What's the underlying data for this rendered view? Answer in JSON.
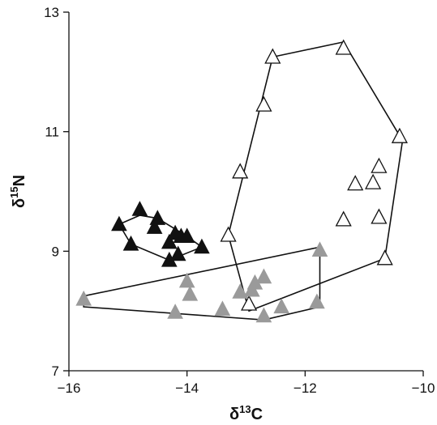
{
  "chart_data": {
    "type": "scatter",
    "title": "",
    "xlabel": "δ13C",
    "xlabel_parts": {
      "symbol": "δ",
      "superscript": "13",
      "element": "C"
    },
    "ylabel": "δ15N",
    "ylabel_parts": {
      "symbol": "δ",
      "superscript": "15",
      "element": "N"
    },
    "xlim": [
      -16,
      -10
    ],
    "ylim": [
      7,
      13
    ],
    "xticks": [
      -16,
      -14,
      -12,
      -10
    ],
    "yticks": [
      7,
      9,
      11,
      13
    ],
    "xtick_labels": [
      "−16",
      "−14",
      "−12",
      "−10"
    ],
    "ytick_labels": [
      "7",
      "9",
      "11",
      "13"
    ],
    "grid": false,
    "legend": "none",
    "series": [
      {
        "marker": "triangle-filled",
        "color": "#111111",
        "points": [
          {
            "x": -15.15,
            "y": 9.45
          },
          {
            "x": -14.8,
            "y": 9.7
          },
          {
            "x": -14.95,
            "y": 9.12
          },
          {
            "x": -14.5,
            "y": 9.55
          },
          {
            "x": -14.55,
            "y": 9.4
          },
          {
            "x": -14.3,
            "y": 9.15
          },
          {
            "x": -14.2,
            "y": 9.3
          },
          {
            "x": -14.1,
            "y": 9.25
          },
          {
            "x": -14.0,
            "y": 9.25
          },
          {
            "x": -14.15,
            "y": 8.95
          },
          {
            "x": -14.3,
            "y": 8.85
          },
          {
            "x": -13.75,
            "y": 9.07
          }
        ],
        "hull": [
          {
            "x": -15.15,
            "y": 9.45
          },
          {
            "x": -14.8,
            "y": 9.6
          },
          {
            "x": -14.5,
            "y": 9.55
          },
          {
            "x": -14.0,
            "y": 9.25
          },
          {
            "x": -13.75,
            "y": 9.07
          },
          {
            "x": -14.3,
            "y": 8.85
          },
          {
            "x": -14.95,
            "y": 9.12
          }
        ]
      },
      {
        "marker": "triangle-open",
        "color": "#111111",
        "points": [
          {
            "x": -13.3,
            "y": 9.27
          },
          {
            "x": -13.1,
            "y": 10.33
          },
          {
            "x": -12.7,
            "y": 11.45
          },
          {
            "x": -12.55,
            "y": 12.25
          },
          {
            "x": -11.35,
            "y": 12.4
          },
          {
            "x": -10.4,
            "y": 10.92
          },
          {
            "x": -10.75,
            "y": 10.42
          },
          {
            "x": -10.85,
            "y": 10.15
          },
          {
            "x": -11.15,
            "y": 10.13
          },
          {
            "x": -10.75,
            "y": 9.57
          },
          {
            "x": -11.35,
            "y": 9.53
          },
          {
            "x": -10.65,
            "y": 8.88
          },
          {
            "x": -12.95,
            "y": 8.12
          }
        ],
        "hull": [
          {
            "x": -13.3,
            "y": 9.27
          },
          {
            "x": -12.55,
            "y": 12.25
          },
          {
            "x": -11.35,
            "y": 12.5
          },
          {
            "x": -10.35,
            "y": 10.85
          },
          {
            "x": -10.65,
            "y": 8.88
          },
          {
            "x": -12.95,
            "y": 8.0
          }
        ]
      },
      {
        "marker": "triangle-filled",
        "color": "#9a9a9a",
        "points": [
          {
            "x": -15.75,
            "y": 8.2
          },
          {
            "x": -14.0,
            "y": 8.5
          },
          {
            "x": -13.95,
            "y": 8.28
          },
          {
            "x": -14.2,
            "y": 7.98
          },
          {
            "x": -13.4,
            "y": 8.03
          },
          {
            "x": -13.1,
            "y": 8.32
          },
          {
            "x": -12.9,
            "y": 8.35
          },
          {
            "x": -12.85,
            "y": 8.47
          },
          {
            "x": -12.7,
            "y": 8.57
          },
          {
            "x": -12.7,
            "y": 7.92
          },
          {
            "x": -12.4,
            "y": 8.07
          },
          {
            "x": -11.8,
            "y": 8.15
          },
          {
            "x": -11.75,
            "y": 9.02
          }
        ],
        "hull": [
          {
            "x": -15.75,
            "y": 8.25
          },
          {
            "x": -11.75,
            "y": 9.07
          },
          {
            "x": -11.75,
            "y": 8.07
          },
          {
            "x": -12.7,
            "y": 7.85
          },
          {
            "x": -15.75,
            "y": 8.07
          }
        ]
      }
    ]
  }
}
